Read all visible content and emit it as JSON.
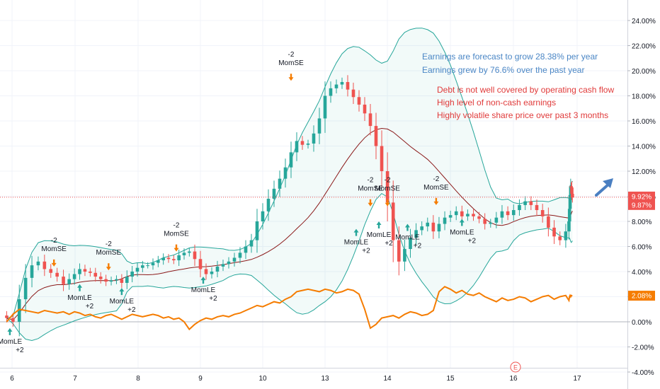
{
  "chart_data": {
    "type": "line",
    "x_ticks": [
      "6",
      "7",
      "8",
      "9",
      "10",
      "13",
      "14",
      "15",
      "16",
      "17"
    ],
    "y_ticks": [
      "24.00%",
      "22.00%",
      "20.00%",
      "18.00%",
      "16.00%",
      "14.00%",
      "12.00%",
      "10.00%",
      "8.00%",
      "6.00%",
      "4.00%",
      "2.00%",
      "0.00%",
      "-2.00%",
      "-4.00%"
    ],
    "ylim": [
      -4.0,
      25.0
    ],
    "grid": true,
    "series": [
      {
        "role": "price_candles",
        "values": [
          0.3,
          0.0,
          1.8,
          3.5,
          4.5,
          4.8,
          4.2,
          3.9,
          3.6,
          3.0,
          3.4,
          3.8,
          4.2,
          4.0,
          3.9,
          3.6,
          3.4,
          3.2,
          3.3,
          3.4,
          3.1,
          3.6,
          4.0,
          4.3,
          4.5,
          4.5,
          4.7,
          4.9,
          5.1,
          5.0,
          4.9,
          5.3,
          5.5,
          5.6,
          5.0,
          4.2,
          3.8,
          4.0,
          4.4,
          4.6,
          4.8,
          5.1,
          5.5,
          6.0,
          6.5,
          8.0,
          8.8,
          9.8,
          10.6,
          11.4,
          12.3,
          13.5,
          14.4,
          14.1,
          14.2,
          15.0,
          16.2,
          18.0,
          18.6,
          18.9,
          19.1,
          18.5,
          17.9,
          17.3,
          16.6,
          15.6,
          14.0,
          12.0,
          9.5,
          6.5,
          4.8,
          5.8,
          6.7,
          7.3,
          7.6,
          7.9,
          7.2,
          7.8,
          8.3,
          8.5,
          8.8,
          8.4,
          8.6,
          8.4,
          8.2,
          7.8,
          7.9,
          8.3,
          8.8,
          8.5,
          8.9,
          9.3,
          9.6,
          9.3,
          8.9,
          8.4,
          7.5,
          6.8,
          6.5,
          7.2,
          8.0,
          9.0,
          10.1,
          10.8,
          10.7,
          10.2,
          9.9
        ]
      },
      {
        "role": "orange_line",
        "values": [
          0.0,
          0.6,
          1.0,
          0.9,
          0.8,
          0.7,
          0.9,
          0.8,
          0.7,
          0.8,
          0.6,
          0.8,
          0.7,
          0.5,
          0.6,
          0.4,
          0.3,
          0.5,
          0.6,
          0.4,
          0.2,
          0.4,
          0.6,
          0.5,
          0.4,
          0.5,
          0.6,
          0.5,
          0.3,
          0.4,
          0.2,
          0.3,
          0.0,
          -0.6,
          -0.2,
          0.1,
          0.3,
          0.2,
          0.4,
          0.5,
          0.4,
          0.6,
          0.7,
          0.9,
          1.1,
          1.3,
          1.2,
          1.4,
          1.6,
          1.5,
          1.8,
          2.0,
          2.4,
          2.5,
          2.6,
          2.5,
          2.4,
          2.6,
          2.5,
          2.3,
          2.4,
          2.6,
          2.5,
          2.2,
          1.0,
          -0.5,
          -0.2,
          0.3,
          0.4,
          0.5,
          0.3,
          0.6,
          0.8,
          0.7,
          0.5,
          0.6,
          0.9,
          2.4,
          2.8,
          2.6,
          2.3,
          2.5,
          2.2,
          2.1,
          2.3,
          2.0,
          1.8,
          1.6,
          1.9,
          1.7,
          1.8,
          2.0,
          1.9,
          1.6,
          1.8,
          2.0,
          2.1,
          1.8,
          2.0,
          2.1,
          1.7,
          2.0,
          2.1,
          2.0,
          2.1,
          2.08,
          2.08
        ]
      }
    ],
    "price_labels": [
      {
        "text": "9.92%",
        "value": 9.92,
        "color": "#ef5350"
      },
      {
        "text": "9.87%",
        "value": 9.87,
        "color": "#ef5350"
      },
      {
        "text": "2.08%",
        "value": 2.08,
        "color": "#f57c00"
      }
    ],
    "signals": [
      {
        "kind": "MomLE",
        "value": "+2",
        "x": 0.5,
        "y": -0.5
      },
      {
        "kind": "MomSE",
        "value": "-2",
        "x": 7.5,
        "y": 4.4
      },
      {
        "kind": "MomLE",
        "value": "+2",
        "x": 12.0,
        "y": 3.0
      },
      {
        "kind": "MomSE",
        "value": "-2",
        "x": 17.5,
        "y": 4.1
      },
      {
        "kind": "MomLE",
        "value": "+2",
        "x": 20.0,
        "y": 2.7
      },
      {
        "kind": "MomSE",
        "value": "-2",
        "x": 30.5,
        "y": 5.6
      },
      {
        "kind": "MomLE",
        "value": "+2",
        "x": 35.5,
        "y": 3.6
      },
      {
        "kind": "MomSE",
        "value": "-2",
        "x": 51.0,
        "y": 19.2
      },
      {
        "kind": "MomLE",
        "value": "+2",
        "x": 62.5,
        "y": 7.4
      },
      {
        "kind": "MomSE",
        "value": "-2",
        "x": 65.0,
        "y": 9.2
      },
      {
        "kind": "MomLE",
        "value": "+2",
        "x": 66.5,
        "y": 8.0
      },
      {
        "kind": "MomSE",
        "value": "-2",
        "x": 68.0,
        "y": 9.2
      },
      {
        "kind": "MomLE",
        "value": "+2",
        "x": 71.5,
        "y": 7.8
      },
      {
        "kind": "MomSE",
        "value": "-2",
        "x": 76.5,
        "y": 9.3
      },
      {
        "kind": "MomLE",
        "value": "+2",
        "x": 81.0,
        "y": 8.2
      }
    ],
    "earnings_marker": "E",
    "bollinger": true
  },
  "annotations": {
    "blue": [
      "Earnings are forecast to grow 28.38% per year",
      "Earnings grew by 76.6% over the past year"
    ],
    "red": [
      "Debt is not well covered by operating cash flow",
      "High level of non-cash earnings",
      "Highly volatile share price over past 3 months"
    ]
  },
  "colors": {
    "up": "#26a69a",
    "down": "#ef5350",
    "band": "#26a69a",
    "mid": "#8b1a1a",
    "orange": "#f57c00",
    "blue_arrow": "#4a7fc1",
    "text": "#131722"
  }
}
